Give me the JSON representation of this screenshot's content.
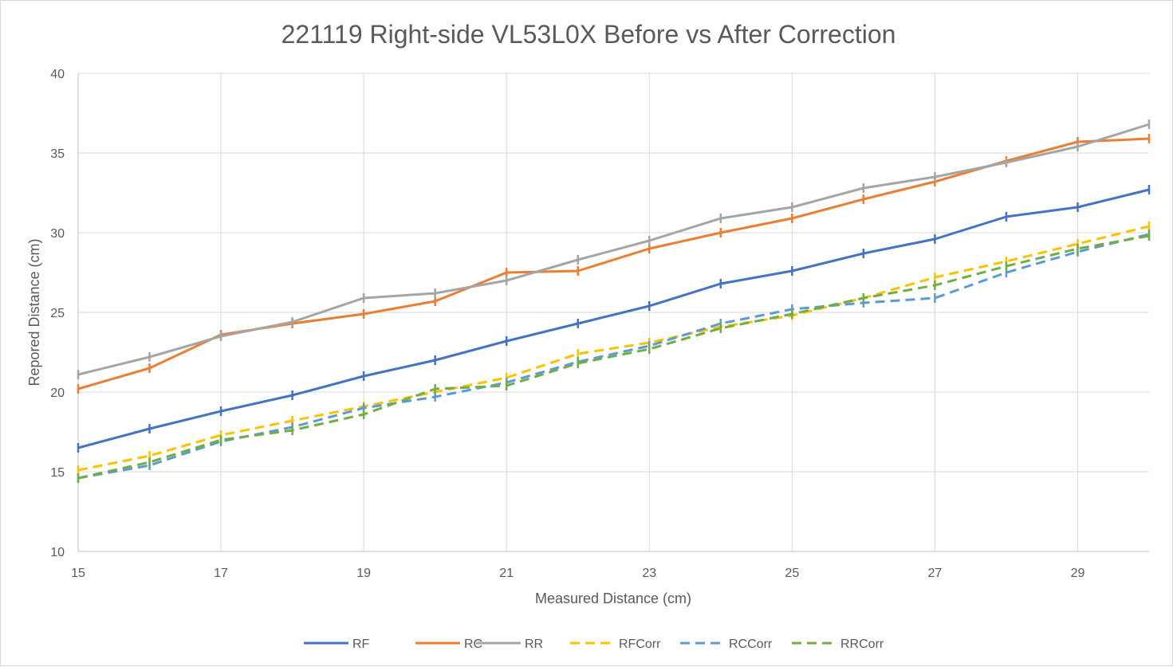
{
  "chart_data": {
    "type": "line",
    "title": "221119 Right-side VL53L0X Before vs After Correction",
    "xlabel": "Measured Distance (cm)",
    "ylabel": "Repored Distance (cm)",
    "xlim": [
      15,
      30
    ],
    "ylim": [
      10,
      40
    ],
    "x_ticks": [
      15,
      17,
      19,
      21,
      23,
      25,
      27,
      29
    ],
    "y_ticks": [
      10,
      15,
      20,
      25,
      30,
      35,
      40
    ],
    "grid": true,
    "legend": "bottom",
    "series": [
      {
        "name": "RF",
        "color": "#4472C4",
        "dash": false,
        "x": [
          15,
          16,
          17,
          18,
          19,
          20,
          21,
          22,
          23,
          24,
          25,
          26,
          27,
          28,
          29,
          30
        ],
        "y": [
          16.5,
          17.7,
          18.8,
          19.8,
          21.0,
          22.0,
          23.2,
          24.3,
          25.4,
          26.8,
          27.6,
          28.7,
          29.6,
          31.0,
          31.6,
          32.7
        ]
      },
      {
        "name": "RC",
        "color": "#ED7D31",
        "dash": false,
        "x": [
          15,
          16,
          17,
          18,
          19,
          20,
          21,
          22,
          23,
          24,
          25,
          26,
          27,
          28,
          29,
          30
        ],
        "y": [
          20.2,
          21.5,
          23.6,
          24.3,
          24.9,
          25.7,
          27.5,
          27.6,
          29.0,
          30.0,
          30.9,
          32.1,
          33.2,
          34.5,
          35.7,
          35.9
        ]
      },
      {
        "name": "RR",
        "color": "#A5A5A5",
        "dash": false,
        "x": [
          15,
          16,
          17,
          18,
          19,
          20,
          21,
          22,
          23,
          24,
          25,
          26,
          27,
          28,
          29,
          30
        ],
        "y": [
          21.1,
          22.2,
          23.5,
          24.4,
          25.9,
          26.2,
          27.0,
          28.3,
          29.5,
          30.9,
          31.6,
          32.8,
          33.5,
          34.4,
          35.4,
          36.8
        ]
      },
      {
        "name": "RFCorr",
        "color": "#FFC000",
        "dash": true,
        "x": [
          15,
          16,
          17,
          18,
          19,
          20,
          21,
          22,
          23,
          24,
          25,
          26,
          27,
          28,
          29,
          30
        ],
        "y": [
          15.1,
          16.0,
          17.3,
          18.2,
          19.1,
          20.0,
          20.9,
          22.4,
          23.1,
          24.1,
          24.8,
          25.9,
          27.2,
          28.2,
          29.3,
          30.4
        ]
      },
      {
        "name": "RCCorr",
        "color": "#5B9BD5",
        "dash": true,
        "x": [
          15,
          16,
          17,
          18,
          19,
          20,
          21,
          22,
          23,
          24,
          25,
          26,
          27,
          28,
          29,
          30
        ],
        "y": [
          14.6,
          15.4,
          16.9,
          17.8,
          19.0,
          19.7,
          20.6,
          21.9,
          22.9,
          24.3,
          25.2,
          25.6,
          25.9,
          27.5,
          28.8,
          29.9
        ]
      },
      {
        "name": "RRCorr",
        "color": "#70AD47",
        "dash": true,
        "x": [
          15,
          16,
          17,
          18,
          19,
          20,
          21,
          22,
          23,
          24,
          25,
          26,
          27,
          28,
          29,
          30
        ],
        "y": [
          14.6,
          15.6,
          17.0,
          17.6,
          18.6,
          20.2,
          20.4,
          21.8,
          22.7,
          24.0,
          24.9,
          25.9,
          26.7,
          27.9,
          29.0,
          29.8
        ]
      }
    ]
  }
}
